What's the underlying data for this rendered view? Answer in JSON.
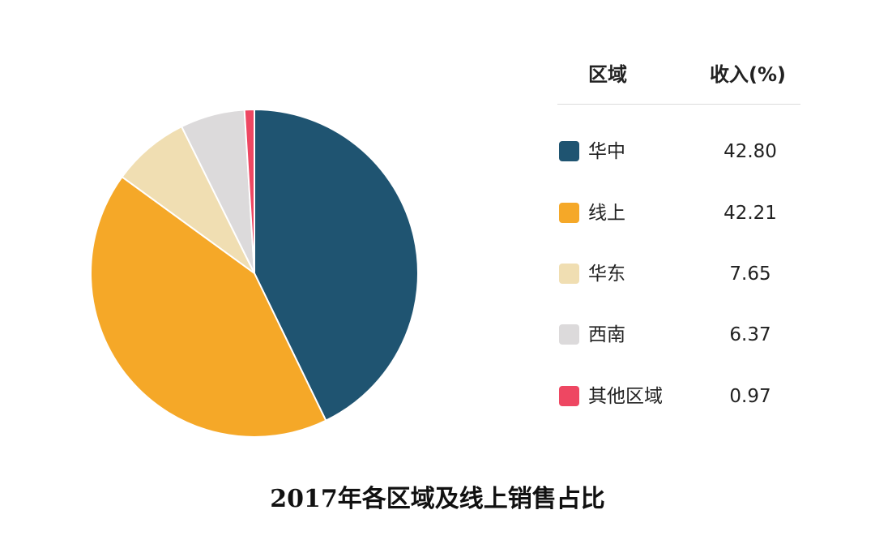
{
  "chart_data": {
    "type": "pie",
    "title": "2017年各区域及线上销售占比",
    "table_header": {
      "region": "区域",
      "revenue": "收入(%)"
    },
    "categories": [
      "华中",
      "线上",
      "华东",
      "西南",
      "其他区域"
    ],
    "values": [
      42.8,
      42.21,
      7.65,
      6.37,
      0.97
    ],
    "value_labels": [
      "42.80",
      "42.21",
      "7.65",
      "6.37",
      "0.97"
    ],
    "colors": [
      "#1f5471",
      "#f5a828",
      "#f0deb2",
      "#dcdadb",
      "#ee4762"
    ],
    "legend": "right, as table"
  }
}
